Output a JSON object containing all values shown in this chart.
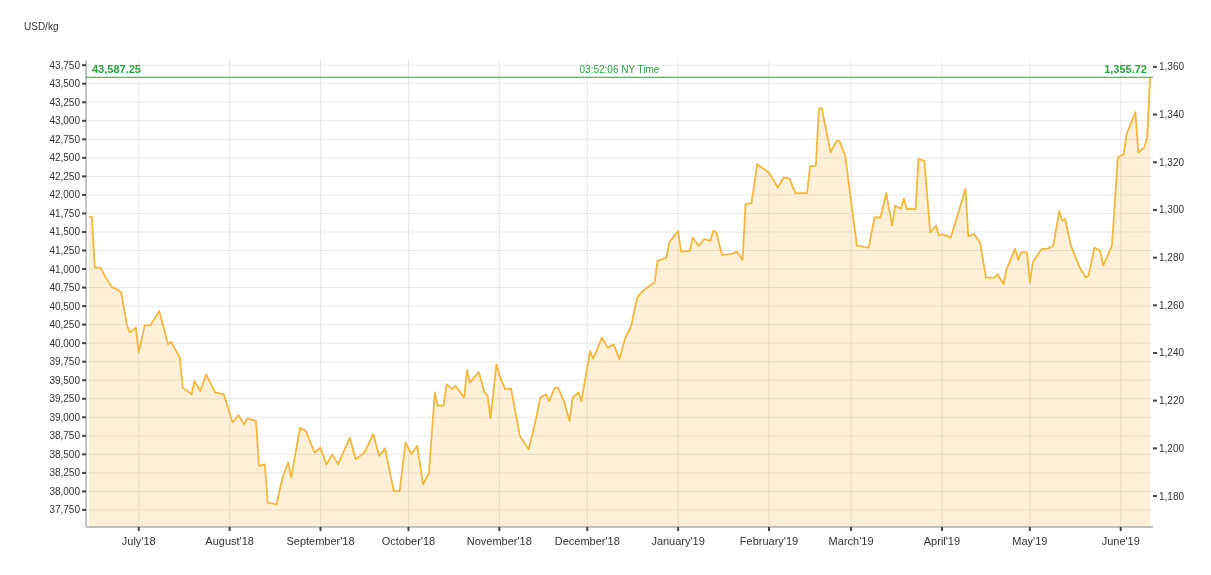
{
  "chart_data": {
    "type": "area",
    "ylabel": "USD/kg",
    "annotations": [
      "03:52:06 NY Time",
      "1,355.72"
    ],
    "xlim": [
      "2018-06-13",
      "2019-06-12"
    ],
    "xticks": [
      {
        "value": "2018-07-01",
        "label": "July'18"
      },
      {
        "value": "2018-08-01",
        "label": "August'18"
      },
      {
        "value": "2018-09-01",
        "label": "September'18"
      },
      {
        "value": "2018-10-01",
        "label": "October'18"
      },
      {
        "value": "2018-11-01",
        "label": "November'18"
      },
      {
        "value": "2018-12-01",
        "label": "December'18"
      },
      {
        "value": "2019-01-01",
        "label": "January'19"
      },
      {
        "value": "2019-02-01",
        "label": "February'19"
      },
      {
        "value": "2019-03-01",
        "label": "March'19"
      },
      {
        "value": "2019-04-01",
        "label": "April'19"
      },
      {
        "value": "2019-05-01",
        "label": "May'19"
      },
      {
        "value": "2019-06-01",
        "label": "June'19"
      }
    ],
    "ylim": [
      37520,
      43820
    ],
    "yticks": [
      {
        "value": 37750,
        "label": "37,750"
      },
      {
        "value": 38000,
        "label": "38,000"
      },
      {
        "value": 38250,
        "label": "38,250"
      },
      {
        "value": 38500,
        "label": "38,500"
      },
      {
        "value": 38750,
        "label": "38,750"
      },
      {
        "value": 39000,
        "label": "39,000"
      },
      {
        "value": 39250,
        "label": "39,250"
      },
      {
        "value": 39500,
        "label": "39,500"
      },
      {
        "value": 39750,
        "label": "39,750"
      },
      {
        "value": 40000,
        "label": "40,000"
      },
      {
        "value": 40250,
        "label": "40,250"
      },
      {
        "value": 40500,
        "label": "40,500"
      },
      {
        "value": 40750,
        "label": "40,750"
      },
      {
        "value": 41000,
        "label": "41,000"
      },
      {
        "value": 41250,
        "label": "41,250"
      },
      {
        "value": 41500,
        "label": "41,500"
      },
      {
        "value": 41750,
        "label": "41,750"
      },
      {
        "value": 42000,
        "label": "42,000"
      },
      {
        "value": 42250,
        "label": "42,250"
      },
      {
        "value": 42500,
        "label": "42,500"
      },
      {
        "value": 42750,
        "label": "42,750"
      },
      {
        "value": 43000,
        "label": "43,000"
      },
      {
        "value": 43250,
        "label": "43,250"
      },
      {
        "value": 43500,
        "label": "43,500"
      },
      {
        "value": 43750,
        "label": "43,750"
      }
    ],
    "y2lim": [
      1167,
      1362.9
    ],
    "y2ticks": [
      {
        "value": 1180,
        "label": "1,180"
      },
      {
        "value": 1200,
        "label": "1,200"
      },
      {
        "value": 1220,
        "label": "1,220"
      },
      {
        "value": 1240,
        "label": "1,240"
      },
      {
        "value": 1260,
        "label": "1,260"
      },
      {
        "value": 1280,
        "label": "1,280"
      },
      {
        "value": 1300,
        "label": "1,300"
      },
      {
        "value": 1320,
        "label": "1,320"
      },
      {
        "value": 1340,
        "label": "1,340"
      },
      {
        "value": 1360,
        "label": "1,360"
      }
    ],
    "grid": true,
    "ref_lines": [
      {
        "axis": "y",
        "value": 43587.25,
        "label": "43,587.25",
        "color": "#2e9e3e"
      }
    ],
    "x": [
      "2018-06-14",
      "2018-06-15",
      "2018-06-16",
      "2018-06-18",
      "2018-06-20",
      "2018-06-22",
      "2018-06-23",
      "2018-06-25",
      "2018-06-27",
      "2018-06-28",
      "2018-06-30",
      "2018-07-01",
      "2018-07-03",
      "2018-07-05",
      "2018-07-08",
      "2018-07-11",
      "2018-07-12",
      "2018-07-15",
      "2018-07-16",
      "2018-07-19",
      "2018-07-20",
      "2018-07-22",
      "2018-07-24",
      "2018-07-27",
      "2018-07-30",
      "2018-08-02",
      "2018-08-04",
      "2018-08-06",
      "2018-08-07",
      "2018-08-10",
      "2018-08-11",
      "2018-08-13",
      "2018-08-14",
      "2018-08-17",
      "2018-08-19",
      "2018-08-21",
      "2018-08-22",
      "2018-08-25",
      "2018-08-27",
      "2018-08-30",
      "2018-09-01",
      "2018-09-03",
      "2018-09-05",
      "2018-09-07",
      "2018-09-11",
      "2018-09-13",
      "2018-09-16",
      "2018-09-19",
      "2018-09-21",
      "2018-09-23",
      "2018-09-26",
      "2018-09-28",
      "2018-09-30",
      "2018-10-02",
      "2018-10-04",
      "2018-10-06",
      "2018-10-08",
      "2018-10-10",
      "2018-10-11",
      "2018-10-13",
      "2018-10-14",
      "2018-10-16",
      "2018-10-17",
      "2018-10-20",
      "2018-10-21",
      "2018-10-22",
      "2018-10-25",
      "2018-10-27",
      "2018-10-28",
      "2018-10-29",
      "2018-10-31",
      "2018-11-01",
      "2018-11-03",
      "2018-11-05",
      "2018-11-08",
      "2018-11-11",
      "2018-11-13",
      "2018-11-15",
      "2018-11-17",
      "2018-11-18",
      "2018-11-20",
      "2018-11-21",
      "2018-11-23",
      "2018-11-25",
      "2018-11-26",
      "2018-11-28",
      "2018-11-29",
      "2018-12-02",
      "2018-12-03",
      "2018-12-06",
      "2018-12-08",
      "2018-12-10",
      "2018-12-12",
      "2018-12-14",
      "2018-12-16",
      "2018-12-18",
      "2018-12-20",
      "2018-12-22",
      "2018-12-24",
      "2018-12-25",
      "2018-12-28",
      "2018-12-29",
      "2019-01-01",
      "2019-01-02",
      "2019-01-05",
      "2019-01-06",
      "2019-01-08",
      "2019-01-10",
      "2019-01-12",
      "2019-01-13",
      "2019-01-14",
      "2019-01-16",
      "2019-01-19",
      "2019-01-21",
      "2019-01-23",
      "2019-01-24",
      "2019-01-26",
      "2019-01-28",
      "2019-02-01",
      "2019-02-04",
      "2019-02-06",
      "2019-02-08",
      "2019-02-10",
      "2019-02-14",
      "2019-02-15",
      "2019-02-17",
      "2019-02-18",
      "2019-02-19",
      "2019-02-22",
      "2019-02-24",
      "2019-02-25",
      "2019-02-27",
      "2019-02-28",
      "2019-03-03",
      "2019-03-07",
      "2019-03-09",
      "2019-03-11",
      "2019-03-13",
      "2019-03-15",
      "2019-03-16",
      "2019-03-18",
      "2019-03-19",
      "2019-03-20",
      "2019-03-23",
      "2019-03-24",
      "2019-03-26",
      "2019-03-28",
      "2019-03-30",
      "2019-03-31",
      "2019-04-01",
      "2019-04-04",
      "2019-04-07",
      "2019-04-09",
      "2019-04-10",
      "2019-04-12",
      "2019-04-14",
      "2019-04-16",
      "2019-04-19",
      "2019-04-20",
      "2019-04-22",
      "2019-04-23",
      "2019-04-26",
      "2019-04-27",
      "2019-04-28",
      "2019-04-30",
      "2019-05-01",
      "2019-05-02",
      "2019-05-05",
      "2019-05-07",
      "2019-05-09",
      "2019-05-11",
      "2019-05-12",
      "2019-05-13",
      "2019-05-15",
      "2019-05-18",
      "2019-05-20",
      "2019-05-21",
      "2019-05-23",
      "2019-05-25",
      "2019-05-26",
      "2019-05-29",
      "2019-05-31",
      "2019-06-02",
      "2019-06-03",
      "2019-06-06",
      "2019-06-07",
      "2019-06-09",
      "2019-06-10",
      "2019-06-11"
    ],
    "series": [
      {
        "color": "#f0b83c",
        "values": [
          41705,
          41700,
          41020,
          41020,
          40865,
          40750,
          40740,
          40685,
          40235,
          40145,
          40210,
          39875,
          40240,
          40240,
          40435,
          39985,
          40020,
          39805,
          39400,
          39310,
          39490,
          39355,
          39580,
          39335,
          39310,
          38930,
          39030,
          38905,
          38985,
          38950,
          38345,
          38365,
          37850,
          37825,
          38185,
          38390,
          38185,
          38860,
          38815,
          38525,
          38590,
          38365,
          38500,
          38365,
          38725,
          38435,
          38525,
          38775,
          38480,
          38580,
          38005,
          38005,
          38660,
          38500,
          38615,
          38095,
          38255,
          39335,
          39155,
          39160,
          39445,
          39380,
          39425,
          39265,
          39640,
          39470,
          39610,
          39335,
          39290,
          38985,
          39715,
          39570,
          39380,
          39390,
          38750,
          38570,
          38885,
          39265,
          39310,
          39220,
          39400,
          39400,
          39220,
          38950,
          39265,
          39335,
          39220,
          39895,
          39790,
          40075,
          39940,
          39985,
          39785,
          40075,
          40235,
          40615,
          40705,
          40765,
          40820,
          41110,
          41155,
          41360,
          41515,
          41235,
          41245,
          41425,
          41315,
          41405,
          41380,
          41515,
          41500,
          41190,
          41200,
          41235,
          41125,
          41875,
          41890,
          42415,
          42300,
          42100,
          42235,
          42220,
          42025,
          42025,
          42385,
          42395,
          43160,
          43170,
          42575,
          42730,
          42730,
          42530,
          42215,
          41315,
          41290,
          41695,
          41695,
          42025,
          41585,
          41855,
          41815,
          41950,
          41810,
          41810,
          42485,
          42460,
          41495,
          41585,
          41450,
          41470,
          41425,
          41810,
          42080,
          41440,
          41470,
          41360,
          40885,
          40885,
          40930,
          40795,
          40995,
          41275,
          41125,
          41225,
          41225,
          40820,
          41090,
          41270,
          41275,
          41315,
          41785,
          41650,
          41675,
          41315,
          41020,
          40885,
          40910,
          41290,
          41245,
          41045,
          41315,
          42505,
          42550,
          42820,
          43115,
          42575,
          42640,
          42775,
          43587
        ]
      }
    ]
  }
}
